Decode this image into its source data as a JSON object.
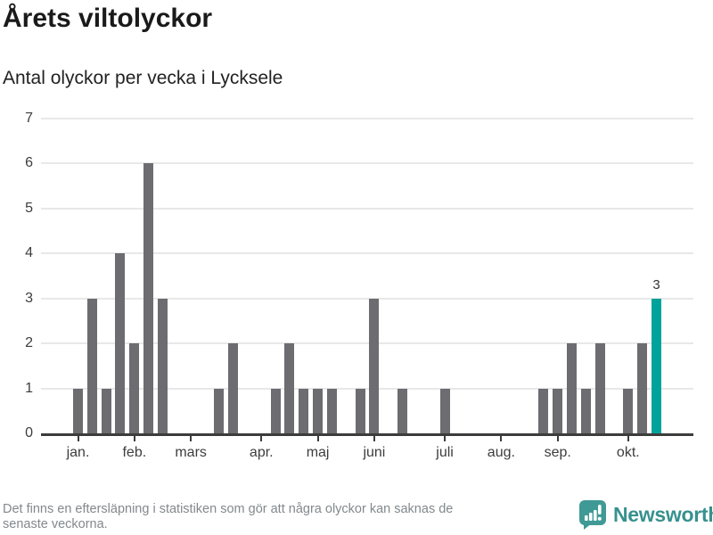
{
  "header": {
    "title": "Årets viltolyckor",
    "subtitle": "Antal olyckor per vecka i Lycksele"
  },
  "chart_data": {
    "type": "bar",
    "title": "Årets viltolyckor",
    "subtitle": "Antal olyckor per vecka i Lycksele",
    "x_unit": "vecka",
    "values": [
      1,
      3,
      1,
      4,
      2,
      6,
      3,
      0,
      0,
      0,
      1,
      2,
      0,
      0,
      1,
      2,
      1,
      1,
      1,
      0,
      1,
      3,
      0,
      1,
      0,
      0,
      1,
      0,
      0,
      0,
      0,
      0,
      0,
      1,
      1,
      2,
      1,
      2,
      0,
      1,
      2,
      3
    ],
    "month_ticks": [
      {
        "label": "jan.",
        "index": 0
      },
      {
        "label": "feb.",
        "index": 4
      },
      {
        "label": "mars",
        "index": 8
      },
      {
        "label": "apr.",
        "index": 13
      },
      {
        "label": "maj",
        "index": 17
      },
      {
        "label": "juni",
        "index": 21
      },
      {
        "label": "juli",
        "index": 26
      },
      {
        "label": "aug.",
        "index": 30
      },
      {
        "label": "sep.",
        "index": 34
      },
      {
        "label": "okt.",
        "index": 39
      }
    ],
    "yticks": [
      0,
      1,
      2,
      3,
      4,
      5,
      6,
      7
    ],
    "ylim": [
      0,
      7
    ],
    "grid": true,
    "legend": null,
    "highlight": {
      "index": 41,
      "label": "3"
    },
    "colors": {
      "bar": "#6c6c71",
      "highlight": "#00a39b",
      "grid": "#e8e8e8",
      "axis": "#3c3c3c",
      "tick_label": "#3d3d3d"
    }
  },
  "footer": {
    "note_line1": "Det finns en eftersläpning i statistiken som gör att några olyckor kan saknas de",
    "note_line2": "senaste veckorna.",
    "brand": "Newsworthy",
    "brand_color": "#37918e",
    "logo_color": "#3f9a95"
  }
}
